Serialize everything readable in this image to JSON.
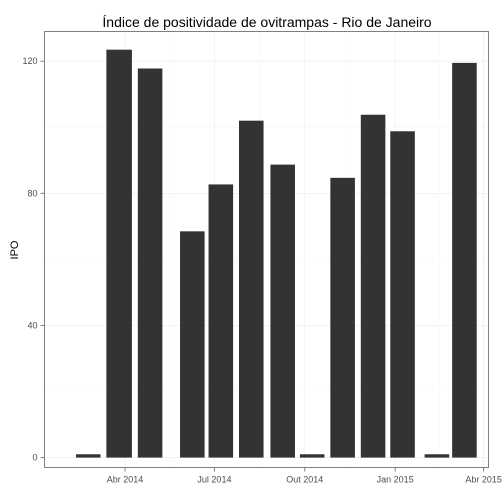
{
  "chart_data": {
    "type": "bar",
    "title": "Índice de positividade de ovitrampas - Rio de Janeiro",
    "xlabel": "",
    "ylabel": "IPO",
    "x_axis_kind": "date",
    "xlim": [
      "2014-01-09",
      "2015-04-06"
    ],
    "ylim": [
      -3,
      129
    ],
    "y_ticks": [
      0,
      40,
      80,
      120
    ],
    "x_ticks": [
      {
        "date": "2014-04-01",
        "label": "Abr 2014"
      },
      {
        "date": "2014-07-01",
        "label": "Jul 2014"
      },
      {
        "date": "2014-10-01",
        "label": "Out 2014"
      },
      {
        "date": "2015-01-01",
        "label": "Jan 2015"
      },
      {
        "date": "2015-04-01",
        "label": "Abr 2015"
      }
    ],
    "grid": true,
    "bar_color": "#333333",
    "bars": [
      {
        "start": "2014-02-10",
        "end": "2014-03-07",
        "value": 1
      },
      {
        "start": "2014-03-13",
        "end": "2014-04-08",
        "value": 123.5
      },
      {
        "start": "2014-04-14",
        "end": "2014-05-09",
        "value": 117.8
      },
      {
        "start": "2014-05-27",
        "end": "2014-06-21",
        "value": 68.5
      },
      {
        "start": "2014-06-25",
        "end": "2014-07-20",
        "value": 82.7
      },
      {
        "start": "2014-07-26",
        "end": "2014-08-20",
        "value": 102
      },
      {
        "start": "2014-08-27",
        "end": "2014-09-21",
        "value": 88.7
      },
      {
        "start": "2014-09-26",
        "end": "2014-10-21",
        "value": 1
      },
      {
        "start": "2014-10-27",
        "end": "2014-11-21",
        "value": 84.7
      },
      {
        "start": "2014-11-27",
        "end": "2014-12-22",
        "value": 103.8
      },
      {
        "start": "2014-12-27",
        "end": "2015-01-21",
        "value": 98.8
      },
      {
        "start": "2015-01-31",
        "end": "2015-02-25",
        "value": 1
      },
      {
        "start": "2015-02-28",
        "end": "2015-03-25",
        "value": 119.5
      }
    ]
  }
}
